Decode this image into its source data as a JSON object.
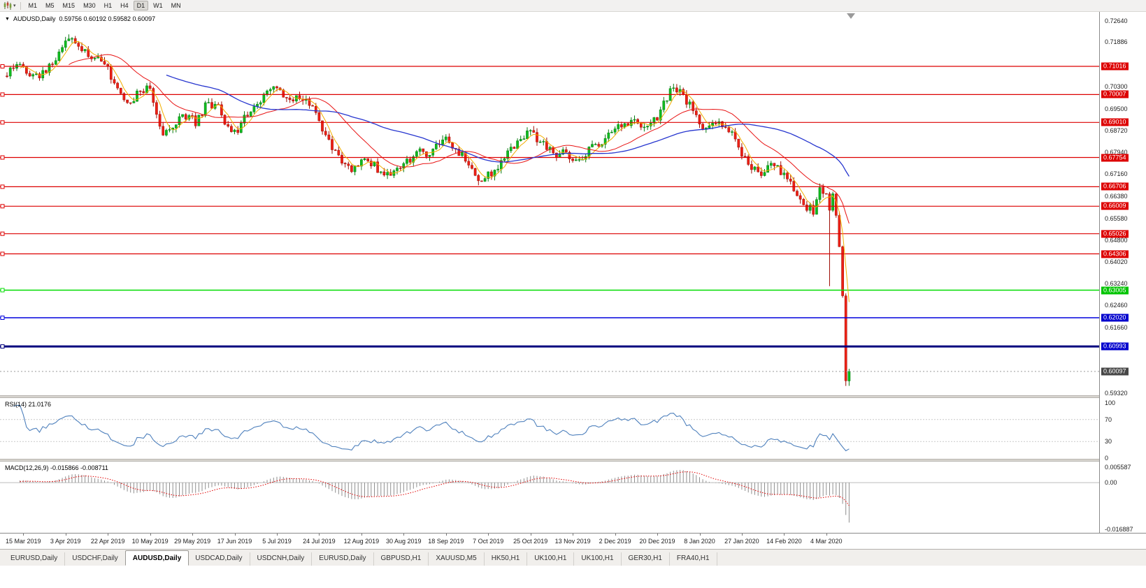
{
  "toolbar": {
    "timeframes": [
      "M1",
      "M5",
      "M15",
      "M30",
      "H1",
      "H4",
      "D1",
      "W1",
      "MN"
    ],
    "active_timeframe": "D1"
  },
  "chart_header": {
    "symbol": "AUDUSD,Daily",
    "ohlc_text": "0.59756 0.60192 0.59582 0.60097"
  },
  "price_axis": {
    "grid_labels": [
      "0.72640",
      "0.71886",
      "0.70300",
      "0.69500",
      "0.68720",
      "0.67940",
      "0.67160",
      "0.66380",
      "0.65580",
      "0.64800",
      "0.64020",
      "0.63240",
      "0.62460",
      "0.61660",
      "0.59320"
    ],
    "badges": [
      {
        "text": "0.71016",
        "type": "red"
      },
      {
        "text": "0.70007",
        "type": "red"
      },
      {
        "text": "0.69010",
        "type": "red"
      },
      {
        "text": "0.67754",
        "type": "red"
      },
      {
        "text": "0.66706",
        "type": "red"
      },
      {
        "text": "0.66009",
        "type": "red"
      },
      {
        "text": "0.65026",
        "type": "red"
      },
      {
        "text": "0.64306",
        "type": "red"
      },
      {
        "text": "0.63005",
        "type": "green"
      },
      {
        "text": "0.62020",
        "type": "blue"
      },
      {
        "text": "0.60993",
        "type": "blue"
      },
      {
        "text": "0.60097",
        "type": "current"
      }
    ]
  },
  "rsi": {
    "label": "RSI(14) 21.0176",
    "period": 14,
    "value": 21.0176,
    "scale_labels": [
      "100",
      "70",
      "30",
      "0"
    ],
    "guides": [
      70,
      30
    ]
  },
  "macd": {
    "label": "MACD(12,26,9) -0.015866 -0.008711",
    "macd_value": -0.015866,
    "signal_value": -0.008711,
    "scale_labels": [
      "0.005587",
      "0.00",
      "-0.016887"
    ],
    "range": [
      -0.016887,
      0.005587
    ]
  },
  "tabs": [
    {
      "label": "EURUSD,Daily",
      "active": false
    },
    {
      "label": "USDCHF,Daily",
      "active": false
    },
    {
      "label": "AUDUSD,Daily",
      "active": true
    },
    {
      "label": "USDCAD,Daily",
      "active": false
    },
    {
      "label": "USDCNH,Daily",
      "active": false
    },
    {
      "label": "EURUSD,Daily",
      "active": false
    },
    {
      "label": "GBPUSD,H1",
      "active": false
    },
    {
      "label": "XAUUSD,M5",
      "active": false
    },
    {
      "label": "HK50,H1",
      "active": false
    },
    {
      "label": "UK100,H1",
      "active": false
    },
    {
      "label": "UK100,H1",
      "active": false
    },
    {
      "label": "GER30,H1",
      "active": false
    },
    {
      "label": "FRA40,H1",
      "active": false
    }
  ],
  "colors": {
    "up": "#0fbc1e",
    "up_stroke": "#077a10",
    "down": "#ee2015",
    "down_stroke": "#9d0d06",
    "ma_fast": "#f2ae00",
    "ma_med": "#e81414",
    "ma_slow": "#2736cf",
    "level_red": "#dd0000",
    "level_green": "#00dc00",
    "level_blue": "#0000dd",
    "level_blue_thick": "#00007d",
    "current_line": "#9a9a9a",
    "rsi_line": "#4f81bd",
    "macd_hist": "#8f8f8f",
    "macd_signal": "#e00000",
    "badge_red": "#dd0000",
    "badge_green": "#00c400",
    "badge_blue": "#0000cd",
    "badge_current": "#474747"
  },
  "chart_data": {
    "type": "candlestick",
    "symbol": "AUDUSD",
    "timeframe": "Daily",
    "last_ohlc": {
      "open": 0.59756,
      "high": 0.60192,
      "low": 0.59582,
      "close": 0.60097
    },
    "y_range": [
      0.5932,
      0.7264
    ],
    "bar_count": 260,
    "x_label_start": 5,
    "x_label_step": 13,
    "x_labels": [
      "15 Mar 2019",
      "3 Apr 2019",
      "22 Apr 2019",
      "10 May 2019",
      "29 May 2019",
      "17 Jun 2019",
      "5 Jul 2019",
      "24 Jul 2019",
      "12 Aug 2019",
      "30 Aug 2019",
      "18 Sep 2019",
      "7 Oct 2019",
      "25 Oct 2019",
      "13 Nov 2019",
      "2 Dec 2019",
      "20 Dec 2019",
      "8 Jan 2020",
      "27 Jan 2020",
      "14 Feb 2020",
      "4 Mar 2020"
    ],
    "price_path": [
      [
        0,
        0.708
      ],
      [
        4,
        0.711
      ],
      [
        8,
        0.706
      ],
      [
        12,
        0.709
      ],
      [
        16,
        0.715
      ],
      [
        19,
        0.7195
      ],
      [
        22,
        0.7185
      ],
      [
        26,
        0.714
      ],
      [
        31,
        0.709
      ],
      [
        35,
        0.7
      ],
      [
        38,
        0.6965
      ],
      [
        41,
        0.7025
      ],
      [
        44,
        0.701
      ],
      [
        46,
        0.693
      ],
      [
        48,
        0.687
      ],
      [
        51,
        0.6895
      ],
      [
        54,
        0.6925
      ],
      [
        58,
        0.6905
      ],
      [
        61,
        0.6955
      ],
      [
        64,
        0.6975
      ],
      [
        67,
        0.6905
      ],
      [
        70,
        0.6865
      ],
      [
        74,
        0.693
      ],
      [
        78,
        0.6975
      ],
      [
        82,
        0.7022
      ],
      [
        86,
        0.6995
      ],
      [
        90,
        0.699
      ],
      [
        94,
        0.695
      ],
      [
        97,
        0.688
      ],
      [
        100,
        0.681
      ],
      [
        103,
        0.676
      ],
      [
        106,
        0.674
      ],
      [
        110,
        0.676
      ],
      [
        113,
        0.6745
      ],
      [
        116,
        0.67
      ],
      [
        119,
        0.6735
      ],
      [
        123,
        0.676
      ],
      [
        127,
        0.68
      ],
      [
        130,
        0.677
      ],
      [
        134,
        0.685
      ],
      [
        138,
        0.68
      ],
      [
        142,
        0.676
      ],
      [
        146,
        0.669
      ],
      [
        149,
        0.672
      ],
      [
        153,
        0.677
      ],
      [
        157,
        0.684
      ],
      [
        160,
        0.6865
      ],
      [
        164,
        0.684
      ],
      [
        168,
        0.6785
      ],
      [
        172,
        0.679
      ],
      [
        176,
        0.676
      ],
      [
        180,
        0.682
      ],
      [
        184,
        0.684
      ],
      [
        188,
        0.688
      ],
      [
        192,
        0.691
      ],
      [
        196,
        0.688
      ],
      [
        200,
        0.692
      ],
      [
        203,
        0.699
      ],
      [
        205,
        0.7025
      ],
      [
        208,
        0.7
      ],
      [
        211,
        0.694
      ],
      [
        214,
        0.688
      ],
      [
        218,
        0.6905
      ],
      [
        222,
        0.688
      ],
      [
        226,
        0.679
      ],
      [
        229,
        0.673
      ],
      [
        232,
        0.672
      ],
      [
        236,
        0.6745
      ],
      [
        240,
        0.67
      ],
      [
        243,
        0.664
      ],
      [
        246,
        0.66
      ],
      [
        248,
        0.6585
      ],
      [
        250,
        0.6655
      ],
      [
        252,
        0.663
      ],
      [
        253,
        0.658
      ],
      [
        254,
        0.663
      ],
      [
        255,
        0.6585
      ],
      [
        256,
        0.645
      ],
      [
        257,
        0.628
      ],
      [
        258,
        0.5976
      ],
      [
        259,
        0.60097
      ]
    ],
    "overrides": {
      "253": {
        "l": 0.6315
      },
      "258": {
        "o": 0.628,
        "c": 0.5976,
        "l": 0.5958
      },
      "259": {
        "o": 0.59756,
        "h": 0.60192,
        "l": 0.59582,
        "c": 0.60097
      }
    },
    "moving_averages": [
      {
        "name": "fast",
        "period": 5,
        "color_key": "ma_fast",
        "width": 1
      },
      {
        "name": "medium",
        "period": 20,
        "color_key": "ma_med",
        "width": 1
      },
      {
        "name": "slow",
        "period": 50,
        "color_key": "ma_slow",
        "width": 1.3
      }
    ],
    "levels": {
      "red": [
        0.71016,
        0.70007,
        0.6901,
        0.67754,
        0.66706,
        0.66009,
        0.65026,
        0.64306
      ],
      "green": [
        0.63005
      ],
      "blue": [
        0.6202
      ],
      "blue_thick": [
        0.60993
      ],
      "current": 0.60097
    }
  }
}
